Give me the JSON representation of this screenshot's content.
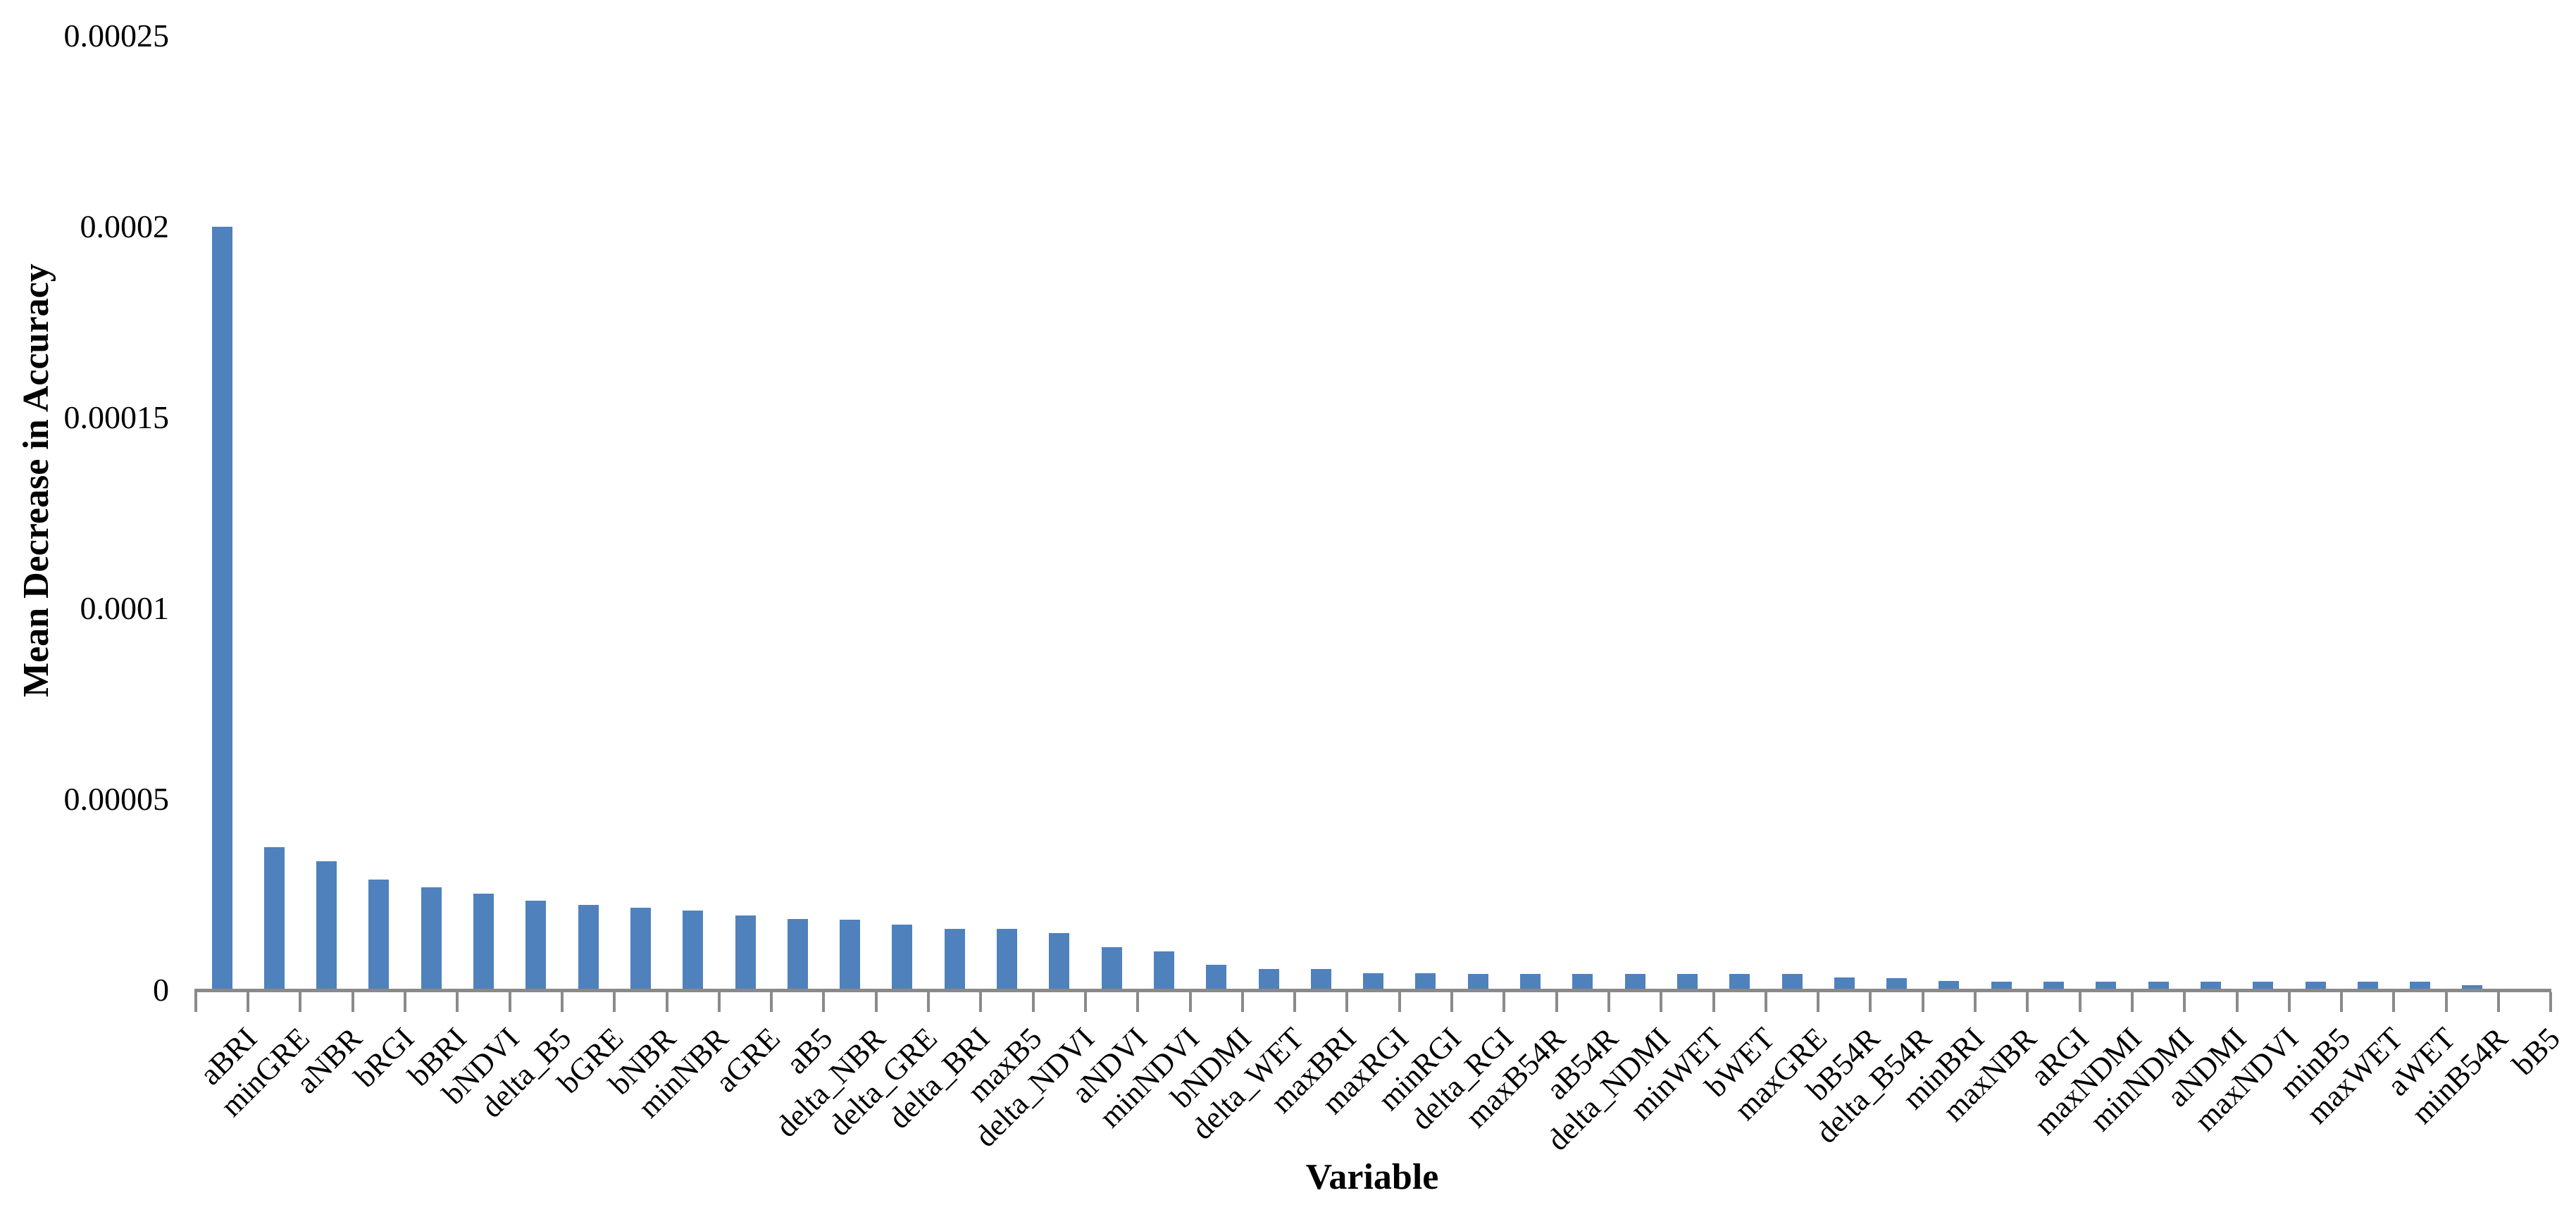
{
  "chart_data": {
    "type": "bar",
    "title": "",
    "xlabel": "Variable",
    "ylabel": "Mean Decrease in Accuracy",
    "categories": [
      "aBRI",
      "minGRE",
      "aNBR",
      "bRGI",
      "bBRI",
      "bNDVI",
      "delta_B5",
      "bGRE",
      "bNBR",
      "minNBR",
      "aGRE",
      "aB5",
      "delta_NBR",
      "delta_GRE",
      "delta_BRI",
      "maxB5",
      "delta_NDVI",
      "aNDVI",
      "minNDVI",
      "bNDMI",
      "delta_WET",
      "maxBRI",
      "maxRGI",
      "minRGI",
      "delta_RGI",
      "maxB54R",
      "aB54R",
      "delta_NDMI",
      "minWET",
      "bWET",
      "maxGRE",
      "bB54R",
      "delta_B54R",
      "minBRI",
      "maxNBR",
      "aRGI",
      "maxNDMI",
      "minNDMI",
      "aNDMI",
      "maxNDVI",
      "minB5",
      "maxWET",
      "aWET",
      "minB54R",
      "bB5"
    ],
    "values": [
      0.0002,
      3.75e-05,
      3.38e-05,
      2.9e-05,
      2.69e-05,
      2.53e-05,
      2.34e-05,
      2.23e-05,
      2.15e-05,
      2.08e-05,
      1.96e-05,
      1.86e-05,
      1.85e-05,
      1.71e-05,
      1.61e-05,
      1.6e-05,
      1.49e-05,
      1.13e-05,
      1.01e-05,
      6.6e-06,
      5.6e-06,
      5.5e-06,
      4.4e-06,
      4.4e-06,
      4.3e-06,
      4.3e-06,
      4.3e-06,
      4.3e-06,
      4.3e-06,
      4.2e-06,
      4.2e-06,
      3.3e-06,
      3.2e-06,
      2.4e-06,
      2.3e-06,
      2.2e-06,
      2.2e-06,
      2.2e-06,
      2.2e-06,
      2.2e-06,
      2.2e-06,
      2.2e-06,
      2.2e-06,
      1.3e-06,
      2e-07
    ],
    "ylim": [
      0,
      0.00025
    ],
    "ytick_labels": [
      "0",
      "0.00005",
      "0.0001",
      "0.00015",
      "0.0002",
      "0.00025"
    ],
    "bar_color": "#4f81bd",
    "axis_color": "#8a8a8a",
    "text_color": "#000000",
    "grid": false,
    "legend": false
  }
}
